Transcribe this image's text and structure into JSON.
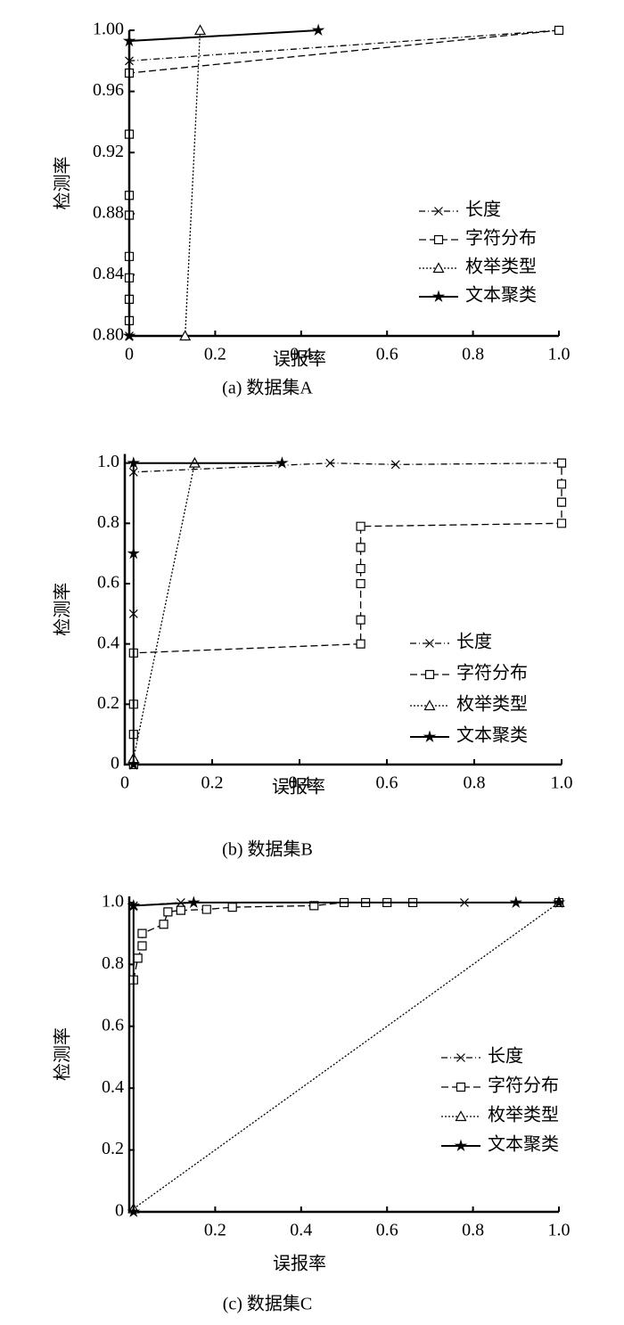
{
  "chart_data": [
    {
      "type": "line",
      "title": "(a) 数据集A",
      "xlabel": "误报率",
      "ylabel": "检测率",
      "xlim": [
        0,
        1
      ],
      "ylim": [
        0.8,
        1.0
      ],
      "xticks": [
        0,
        0.2,
        0.4,
        0.6,
        0.8,
        {
          "value": 1,
          "label": "1.0"
        }
      ],
      "yticks": [
        {
          "value": 0.8,
          "label": "0.80"
        },
        {
          "value": 0.84,
          "label": "0.84"
        },
        {
          "value": 0.88,
          "label": "0.88"
        },
        {
          "value": 0.92,
          "label": "0.92"
        },
        {
          "value": 0.96,
          "label": "0.96"
        },
        {
          "value": 1.0,
          "label": "1.00"
        }
      ],
      "legend": "lower right",
      "series": [
        {
          "name": "长度",
          "color": "#000000",
          "dash": "dashdot",
          "marker": "x",
          "x": [
            0,
            0,
            1
          ],
          "values": [
            0.8,
            0.98,
            1.0
          ]
        },
        {
          "name": "字符分布",
          "color": "#000000",
          "dash": "dashed",
          "marker": "square",
          "x": [
            0,
            0,
            0,
            0,
            0,
            0,
            0,
            0,
            1
          ],
          "values": [
            0.81,
            0.824,
            0.838,
            0.852,
            0.879,
            0.892,
            0.932,
            0.972,
            1.0
          ]
        },
        {
          "name": "枚举类型",
          "color": "#000000",
          "dash": "dotted",
          "marker": "triangle",
          "x": [
            0.13,
            0.165
          ],
          "values": [
            0.8,
            1.0
          ]
        },
        {
          "name": "文本聚类",
          "color": "#000000",
          "dash": "solid",
          "marker": "star",
          "x": [
            0,
            0,
            0.44
          ],
          "values": [
            0.8,
            0.993,
            1.0
          ]
        }
      ]
    },
    {
      "type": "line",
      "title": "(b) 数据集B",
      "xlabel": "误报率",
      "ylabel": "检测率",
      "xlim": [
        0,
        1
      ],
      "ylim": [
        0,
        1.03
      ],
      "xticks": [
        0,
        0.2,
        0.4,
        0.6,
        0.8,
        {
          "value": 1,
          "label": "1.0"
        }
      ],
      "yticks": [
        0,
        0.2,
        0.4,
        0.6,
        0.8,
        {
          "value": 1,
          "label": "1.0"
        }
      ],
      "legend": "lower right",
      "series": [
        {
          "name": "长度",
          "color": "#000000",
          "dash": "dashdot",
          "marker": "x",
          "x": [
            0.02,
            0.02,
            0.47,
            0.62,
            1
          ],
          "values": [
            0.5,
            0.97,
            1.0,
            0.995,
            1.0
          ]
        },
        {
          "name": "字符分布",
          "color": "#000000",
          "dash": "dashed",
          "marker": "square",
          "x": [
            0.02,
            0.02,
            0.02,
            0.02,
            0.54,
            0.54,
            0.54,
            0.54,
            0.54,
            0.54,
            1,
            1,
            1,
            1
          ],
          "values": [
            0.0,
            0.1,
            0.2,
            0.37,
            0.4,
            0.48,
            0.6,
            0.65,
            0.72,
            0.79,
            0.8,
            0.87,
            0.93,
            1.0
          ]
        },
        {
          "name": "枚举类型",
          "color": "#000000",
          "dash": "dotted",
          "marker": "triangle",
          "x": [
            0.02,
            0.16
          ],
          "values": [
            0.02,
            1.0
          ]
        },
        {
          "name": "文本聚类",
          "color": "#000000",
          "dash": "solid",
          "marker": "star",
          "x": [
            0.02,
            0.02,
            0.02,
            0.36
          ],
          "values": [
            0.0,
            0.7,
            1.0,
            1.0
          ]
        }
      ]
    },
    {
      "type": "line",
      "title": "(c) 数据集C",
      "xlabel": "误报率",
      "ylabel": "检测率",
      "xlim": [
        0,
        1
      ],
      "ylim": [
        0,
        1.02
      ],
      "xticks": [
        0.2,
        0.4,
        0.6,
        0.8,
        {
          "value": 1,
          "label": "1.0"
        }
      ],
      "yticks": [
        0,
        0.2,
        0.4,
        0.6,
        0.8,
        {
          "value": 1,
          "label": "1.0"
        }
      ],
      "legend": "lower right",
      "series": [
        {
          "name": "长度",
          "color": "#000000",
          "dash": "dashdot",
          "marker": "x",
          "x": [
            0.01,
            0.12,
            0.78,
            1
          ],
          "values": [
            0.99,
            1.0,
            1.0,
            1.0
          ]
        },
        {
          "name": "字符分布",
          "color": "#000000",
          "dash": "dashed",
          "marker": "square",
          "x": [
            0.01,
            0.02,
            0.03,
            0.03,
            0.08,
            0.09,
            0.12,
            0.18,
            0.24,
            0.43,
            0.5,
            0.55,
            0.6,
            0.66,
            1
          ],
          "values": [
            0.75,
            0.82,
            0.86,
            0.9,
            0.93,
            0.97,
            0.975,
            0.978,
            0.985,
            0.99,
            1.0,
            1.0,
            1.0,
            1.0,
            1.0
          ]
        },
        {
          "name": "枚举类型",
          "color": "#000000",
          "dash": "dotted",
          "marker": "triangle",
          "x": [
            0.01,
            1
          ],
          "values": [
            0.01,
            1.0
          ]
        },
        {
          "name": "文本聚类",
          "color": "#000000",
          "dash": "solid",
          "marker": "star",
          "x": [
            0.01,
            0.01,
            0.15,
            0.9,
            1
          ],
          "values": [
            0.0,
            0.99,
            1.0,
            1.0,
            1.0
          ]
        }
      ]
    }
  ]
}
